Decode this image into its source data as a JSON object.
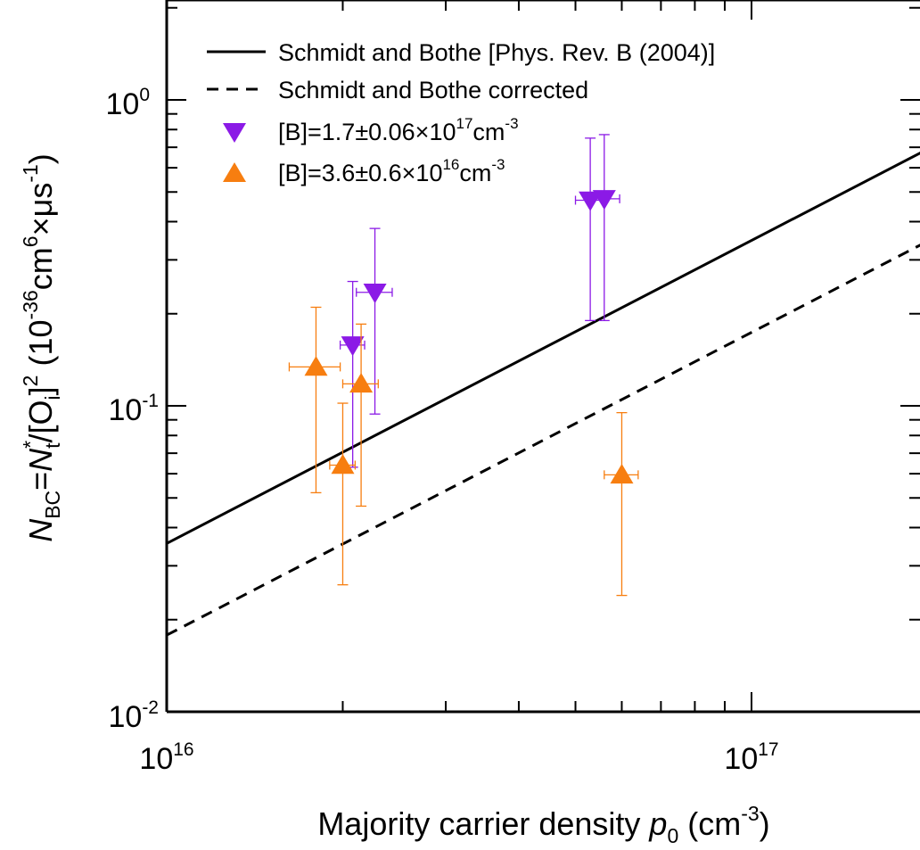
{
  "chart_data": {
    "type": "scatter",
    "x_scale": "log",
    "y_scale": "log",
    "xlim": [
      1e+16,
      2e+17
    ],
    "ylim": [
      0.01,
      2
    ],
    "grid": false,
    "legend_position": "top-left",
    "xlabel": {
      "text": "Majority carrier density ",
      "var": "p",
      "var_sub": "0",
      "unit_open": " (cm",
      "unit_exp": "-3",
      "unit_close": ")"
    },
    "ylabel": {
      "n": "N",
      "n_sub": "BC",
      "eq": "=",
      "nt": "N",
      "nt_sup": "*",
      "nt_sub": "t",
      "rest1": "/[O",
      "o_sub": "i",
      "rest2": "]",
      "sq": "2",
      "u1": " (10",
      "u1_exp": "-36",
      "u2": "cm",
      "u2_exp": "6",
      "u3": "×μs",
      "u3_exp": "-1",
      "u4": ")"
    },
    "x_ticks": [
      {
        "value": 1e+16,
        "base": "10",
        "exp": "16"
      },
      {
        "value": 1e+17,
        "base": "10",
        "exp": "17"
      }
    ],
    "y_ticks": [
      {
        "value": 1,
        "base": "10",
        "exp": "0"
      },
      {
        "value": 0.1,
        "base": "10",
        "exp": "-1"
      },
      {
        "value": 0.01,
        "base": "10",
        "exp": "-2"
      }
    ],
    "lines": [
      {
        "name": "Schmidt and Bothe [Phys. Rev. B (2004)]",
        "style": "solid",
        "color": "#000000",
        "points": [
          [
            1e+16,
            0.0355
          ],
          [
            2e+17,
            0.69
          ]
        ]
      },
      {
        "name": "Schmidt and Bothe corrected",
        "style": "dashed",
        "color": "#000000",
        "points": [
          [
            1e+16,
            0.0178
          ],
          [
            2e+17,
            0.345
          ]
        ]
      }
    ],
    "series": [
      {
        "name_prefix": "[B]=1.7±0.06×10",
        "name_exp": "17",
        "name_unit": "cm",
        "name_unit_exp": "-3",
        "marker": "triangle-down",
        "color": "#8b1ae6",
        "points": [
          {
            "x": 2.08e+16,
            "y": 0.158,
            "x_err": 1000000000000000.0,
            "y_low": 0.063,
            "y_high": 0.255
          },
          {
            "x": 2.27e+16,
            "y": 0.235,
            "x_err": 1600000000000000.0,
            "y_low": 0.094,
            "y_high": 0.38
          },
          {
            "x": 5.3e+16,
            "y": 0.47,
            "x_err": 3000000000000000.0,
            "y_low": 0.19,
            "y_high": 0.75
          },
          {
            "x": 5.6e+16,
            "y": 0.475,
            "x_err": 3500000000000000.0,
            "y_low": 0.19,
            "y_high": 0.77
          }
        ]
      },
      {
        "name_prefix": "[B]=3.6±0.6×10",
        "name_exp": "16",
        "name_unit": "cm",
        "name_unit_exp": "-3",
        "marker": "triangle-up",
        "color": "#f77e10",
        "points": [
          {
            "x": 1.8e+16,
            "y": 0.134,
            "x_err": 1800000000000000.0,
            "y_low": 0.052,
            "y_high": 0.21
          },
          {
            "x": 2e+16,
            "y": 0.064,
            "x_err": 1000000000000000.0,
            "y_low": 0.026,
            "y_high": 0.102
          },
          {
            "x": 2.15e+16,
            "y": 0.118,
            "x_err": 1500000000000000.0,
            "y_low": 0.047,
            "y_high": 0.185
          },
          {
            "x": 6e+16,
            "y": 0.0595,
            "x_err": 4000000000000000.0,
            "y_low": 0.024,
            "y_high": 0.095
          }
        ]
      }
    ]
  }
}
